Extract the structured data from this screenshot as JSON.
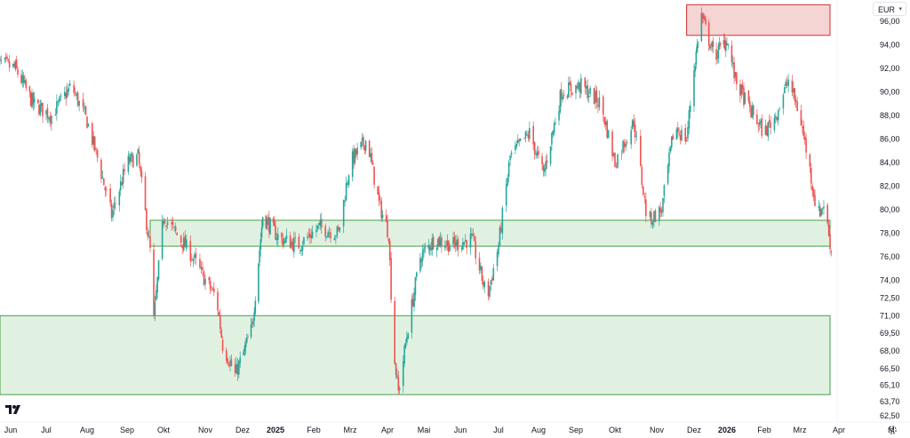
{
  "currency": {
    "label": "EUR"
  },
  "colors": {
    "up": "#26a69a",
    "down": "#ef5350",
    "support_fill": "#c8e6c9",
    "support_stroke": "#43a047",
    "resistance_fill": "#f2c5c5",
    "resistance_stroke": "#d32f2f",
    "axis_text": "#131722"
  },
  "icons": {
    "logo": "tradingview-logo-icon",
    "settings": "gear-icon",
    "currency_dropdown": "chevron-down-icon"
  },
  "chart_data": {
    "type": "candlestick",
    "title": "",
    "xlabel": "",
    "ylabel": "",
    "y_axis_position": "right",
    "grid": false,
    "ylim": [
      62.5,
      97.5
    ],
    "y_ticks": [
      "96,00",
      "94,00",
      "92,00",
      "90,00",
      "88,00",
      "86,00",
      "84,00",
      "82,00",
      "80,00",
      "78,00",
      "76,00",
      "74,00",
      "72,50",
      "71,00",
      "69,50",
      "68,00",
      "66,50",
      "65,10",
      "63,70",
      "62,50"
    ],
    "x_ticks": [
      {
        "label": "Jun",
        "date": "2024-06-01",
        "bold": false
      },
      {
        "label": "Jul",
        "date": "2024-07-01",
        "bold": false
      },
      {
        "label": "Aug",
        "date": "2024-08-01",
        "bold": false
      },
      {
        "label": "Sep",
        "date": "2024-09-01",
        "bold": false
      },
      {
        "label": "Okt",
        "date": "2024-10-01",
        "bold": false
      },
      {
        "label": "Nov",
        "date": "2024-11-01",
        "bold": false
      },
      {
        "label": "Dez",
        "date": "2024-12-01",
        "bold": false
      },
      {
        "label": "2025",
        "date": "2025-01-01",
        "bold": true
      },
      {
        "label": "Feb",
        "date": "2025-02-01",
        "bold": false
      },
      {
        "label": "Mrz",
        "date": "2025-03-01",
        "bold": false
      },
      {
        "label": "Apr",
        "date": "2025-04-01",
        "bold": false
      },
      {
        "label": "Mai",
        "date": "2025-05-01",
        "bold": false
      },
      {
        "label": "Jun",
        "date": "2025-06-01",
        "bold": false
      },
      {
        "label": "Jul",
        "date": "2025-07-01",
        "bold": false
      },
      {
        "label": "Aug",
        "date": "2025-08-01",
        "bold": false
      },
      {
        "label": "Sep",
        "date": "2025-09-01",
        "bold": false
      },
      {
        "label": "Okt",
        "date": "2025-10-01",
        "bold": false
      },
      {
        "label": "Nov",
        "date": "2025-11-01",
        "bold": false
      },
      {
        "label": "Dez",
        "date": "2025-12-01",
        "bold": false
      },
      {
        "label": "2026",
        "date": "2026-01-01",
        "bold": true
      },
      {
        "label": "Feb",
        "date": "2026-02-01",
        "bold": false
      },
      {
        "label": "Mrz",
        "date": "2026-03-01",
        "bold": false
      },
      {
        "label": "Apr",
        "date": "2026-04-01",
        "bold": false
      },
      {
        "label": "M",
        "date": "2026-05-01",
        "bold": false
      }
    ],
    "zones": [
      {
        "kind": "resistance",
        "start": "2025-11-25",
        "end": "2026-03-31",
        "low": 94.8,
        "high": 97.4
      },
      {
        "kind": "support",
        "start": "2024-09-20",
        "end": "2026-03-31",
        "low": 76.9,
        "high": 79.1
      },
      {
        "kind": "support",
        "start": "2024-05-20",
        "end": "2026-03-31",
        "low": 64.3,
        "high": 71.0
      }
    ],
    "price_path": [
      [
        "2024-05-20",
        92.5
      ],
      [
        "2024-06-05",
        92.0
      ],
      [
        "2024-06-20",
        89.0
      ],
      [
        "2024-07-05",
        88.0
      ],
      [
        "2024-07-20",
        90.5
      ],
      [
        "2024-08-01",
        87.5
      ],
      [
        "2024-08-10",
        84.0
      ],
      [
        "2024-08-20",
        79.5
      ],
      [
        "2024-09-01",
        84.0
      ],
      [
        "2024-09-10",
        84.5
      ],
      [
        "2024-09-20",
        76.5
      ],
      [
        "2024-09-22",
        69.5
      ],
      [
        "2024-10-01",
        79.5
      ],
      [
        "2024-10-10",
        78.0
      ],
      [
        "2024-10-20",
        76.5
      ],
      [
        "2024-11-01",
        74.0
      ],
      [
        "2024-11-10",
        72.5
      ],
      [
        "2024-11-15",
        68.5
      ],
      [
        "2024-11-25",
        66.0
      ],
      [
        "2024-12-10",
        70.0
      ],
      [
        "2024-12-20",
        79.5
      ],
      [
        "2025-01-05",
        77.5
      ],
      [
        "2025-01-20",
        77.0
      ],
      [
        "2025-02-05",
        78.5
      ],
      [
        "2025-02-20",
        78.0
      ],
      [
        "2025-03-01",
        84.0
      ],
      [
        "2025-03-15",
        86.0
      ],
      [
        "2025-03-25",
        80.5
      ],
      [
        "2025-04-02",
        78.0
      ],
      [
        "2025-04-06",
        68.0
      ],
      [
        "2025-04-10",
        64.5
      ],
      [
        "2025-04-18",
        70.0
      ],
      [
        "2025-04-28",
        76.0
      ],
      [
        "2025-05-10",
        77.5
      ],
      [
        "2025-05-25",
        77.0
      ],
      [
        "2025-06-10",
        77.5
      ],
      [
        "2025-06-22",
        72.5
      ],
      [
        "2025-07-01",
        77.0
      ],
      [
        "2025-07-10",
        84.5
      ],
      [
        "2025-07-25",
        86.5
      ],
      [
        "2025-08-05",
        83.0
      ],
      [
        "2025-08-20",
        90.0
      ],
      [
        "2025-09-05",
        90.5
      ],
      [
        "2025-09-20",
        89.0
      ],
      [
        "2025-10-01",
        84.0
      ],
      [
        "2025-10-15",
        87.5
      ],
      [
        "2025-10-25",
        79.0
      ],
      [
        "2025-11-05",
        80.0
      ],
      [
        "2025-11-15",
        87.0
      ],
      [
        "2025-11-25",
        86.0
      ],
      [
        "2025-12-01",
        92.0
      ],
      [
        "2025-12-08",
        96.5
      ],
      [
        "2025-12-20",
        93.0
      ],
      [
        "2026-01-01",
        94.5
      ],
      [
        "2026-01-08",
        91.0
      ],
      [
        "2026-01-20",
        88.5
      ],
      [
        "2026-02-01",
        86.5
      ],
      [
        "2026-02-10",
        88.0
      ],
      [
        "2026-02-20",
        91.0
      ],
      [
        "2026-03-01",
        88.0
      ],
      [
        "2026-03-08",
        84.0
      ],
      [
        "2026-03-15",
        79.5
      ],
      [
        "2026-03-20",
        80.5
      ],
      [
        "2026-03-26",
        76.5
      ]
    ]
  }
}
